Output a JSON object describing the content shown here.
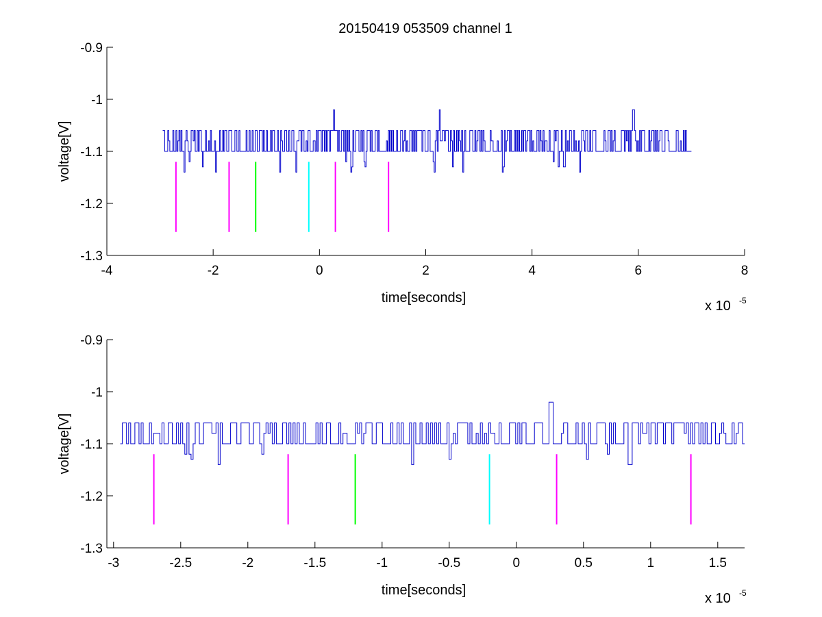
{
  "figure": {
    "title": "20150419 053509 channel 1"
  },
  "colors": {
    "signal": "#0000cc",
    "axis": "#000000",
    "background": "#ffffff"
  },
  "chart_data": [
    {
      "type": "line",
      "title": "20150419 053509 channel 1",
      "xlabel": "time[seconds]",
      "ylabel": "voltage[V]",
      "x_exponent_label": "x 10",
      "x_exponent": "-5",
      "x_scale": 1e-05,
      "xlim": [
        -4,
        8
      ],
      "ylim": [
        -1.3,
        -0.9
      ],
      "xticks": [
        -4,
        -2,
        0,
        2,
        4,
        6,
        8
      ],
      "xtick_labels": [
        "-4",
        "-2",
        "0",
        "2",
        "4",
        "6",
        "8"
      ],
      "yticks": [
        -0.9,
        -1,
        -1.1,
        -1.2,
        -1.3
      ],
      "ytick_labels": [
        "-0.9",
        "-1",
        "-1.1",
        "-1.2",
        "-1.3"
      ],
      "grid": false,
      "series": [
        {
          "signal_x_range": [
            -2.95,
            7.0
          ],
          "baseline_low": -1.1,
          "baseline_high": -1.06,
          "spikes": [
            {
              "x": 0.27,
              "y": -1.02
            },
            {
              "x": 2.25,
              "y": -1.02
            },
            {
              "x": 5.9,
              "y": -1.02
            }
          ],
          "dips": [
            -2.55,
            -2.45,
            -2.2,
            -1.95,
            -0.75,
            -0.45,
            0.5,
            0.6,
            0.85,
            2.15,
            2.5,
            2.7,
            3.45,
            4.4,
            4.5,
            4.6,
            4.9,
            5.9
          ]
        }
      ],
      "markers": [
        {
          "x": -2.7,
          "y_top": -1.12,
          "y_bottom": -1.255,
          "color": "#ff00ff"
        },
        {
          "x": -1.7,
          "y_top": -1.12,
          "y_bottom": -1.255,
          "color": "#ff00ff"
        },
        {
          "x": -1.2,
          "y_top": -1.12,
          "y_bottom": -1.255,
          "color": "#00ff00"
        },
        {
          "x": -0.2,
          "y_top": -1.12,
          "y_bottom": -1.255,
          "color": "#00ffff"
        },
        {
          "x": 0.3,
          "y_top": -1.12,
          "y_bottom": -1.255,
          "color": "#ff00ff"
        },
        {
          "x": 1.3,
          "y_top": -1.12,
          "y_bottom": -1.255,
          "color": "#ff00ff"
        }
      ]
    },
    {
      "type": "line",
      "title": "",
      "xlabel": "time[seconds]",
      "ylabel": "voltage[V]",
      "x_exponent_label": "x 10",
      "x_exponent": "-5",
      "x_scale": 1e-05,
      "xlim": [
        -3.05,
        1.7
      ],
      "ylim": [
        -1.3,
        -0.9
      ],
      "xticks": [
        -3,
        -2.5,
        -2,
        -1.5,
        -1,
        -0.5,
        0,
        0.5,
        1,
        1.5
      ],
      "xtick_labels": [
        "-3",
        "-2.5",
        "-2",
        "-1.5",
        "-1",
        "-0.5",
        "0",
        "0.5",
        "1",
        "1.5"
      ],
      "yticks": [
        -0.9,
        -1,
        -1.1,
        -1.2,
        -1.3
      ],
      "ytick_labels": [
        "-0.9",
        "-1",
        "-1.1",
        "-1.2",
        "-1.3"
      ],
      "grid": false,
      "series": [
        {
          "signal_x_range": [
            -2.95,
            1.7
          ],
          "baseline_low": -1.1,
          "baseline_high": -1.06,
          "spikes": [
            {
              "x": 0.25,
              "y": -1.02
            }
          ],
          "dips": [
            -2.47,
            -2.43,
            -2.22,
            -1.9,
            -0.78,
            -0.5,
            0.52,
            0.68,
            0.84
          ]
        }
      ],
      "markers": [
        {
          "x": -2.7,
          "y_top": -1.12,
          "y_bottom": -1.255,
          "color": "#ff00ff"
        },
        {
          "x": -1.7,
          "y_top": -1.12,
          "y_bottom": -1.255,
          "color": "#ff00ff"
        },
        {
          "x": -1.2,
          "y_top": -1.12,
          "y_bottom": -1.255,
          "color": "#00ff00"
        },
        {
          "x": -0.2,
          "y_top": -1.12,
          "y_bottom": -1.255,
          "color": "#00ffff"
        },
        {
          "x": 0.3,
          "y_top": -1.12,
          "y_bottom": -1.255,
          "color": "#ff00ff"
        },
        {
          "x": 1.3,
          "y_top": -1.12,
          "y_bottom": -1.255,
          "color": "#ff00ff"
        }
      ]
    }
  ]
}
